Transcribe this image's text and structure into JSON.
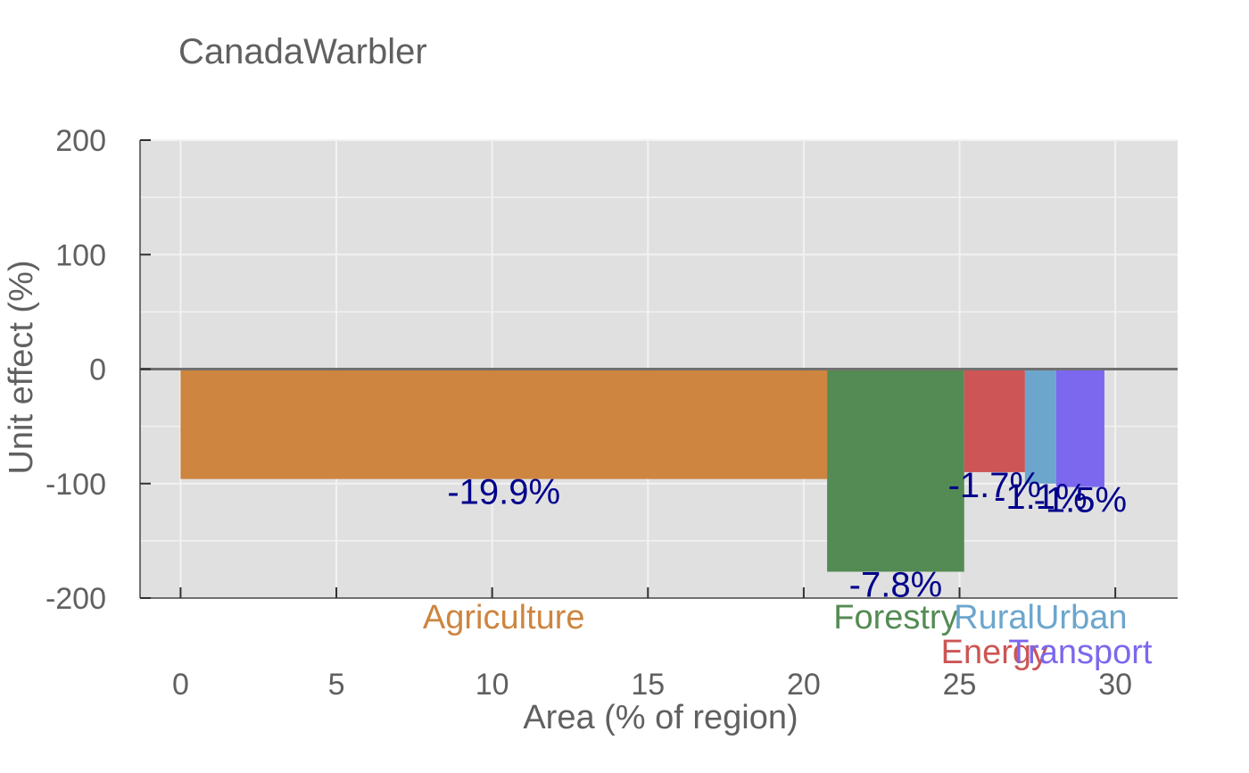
{
  "chart_data": {
    "type": "bar",
    "title": "CanadaWarbler",
    "xlabel": "Area (% of region)",
    "ylabel": "Unit effect (%)",
    "xlim": [
      -1.3,
      32
    ],
    "ylim": [
      -200,
      200
    ],
    "xticks": [
      0,
      5,
      10,
      15,
      20,
      25,
      30
    ],
    "yticks": [
      -200,
      -100,
      0,
      100,
      200
    ],
    "grid": true,
    "series": [
      {
        "name": "Agriculture",
        "x_start": 0.0,
        "x_end": 20.75,
        "value": -96,
        "label": "-19.9%",
        "color": "#CD853F",
        "label_row": 1
      },
      {
        "name": "Forestry",
        "x_start": 20.75,
        "x_end": 25.15,
        "value": -177,
        "label": "-7.8%",
        "color": "#548B54",
        "label_row": 1
      },
      {
        "name": "Energy",
        "x_start": 25.15,
        "x_end": 27.1,
        "value": -90,
        "label": "-1.7%",
        "color": "#CD5555",
        "label_row": 2
      },
      {
        "name": "RuralUrban",
        "x_start": 27.1,
        "x_end": 28.1,
        "value": -100,
        "label": "-1.1%",
        "color": "#6CA6CD",
        "label_row": 1
      },
      {
        "name": "Transport",
        "x_start": 28.1,
        "x_end": 29.65,
        "value": -103,
        "label": "-1.5%",
        "color": "#7B68EE",
        "label_row": 2
      }
    ],
    "value_label_color": "#00008B"
  }
}
